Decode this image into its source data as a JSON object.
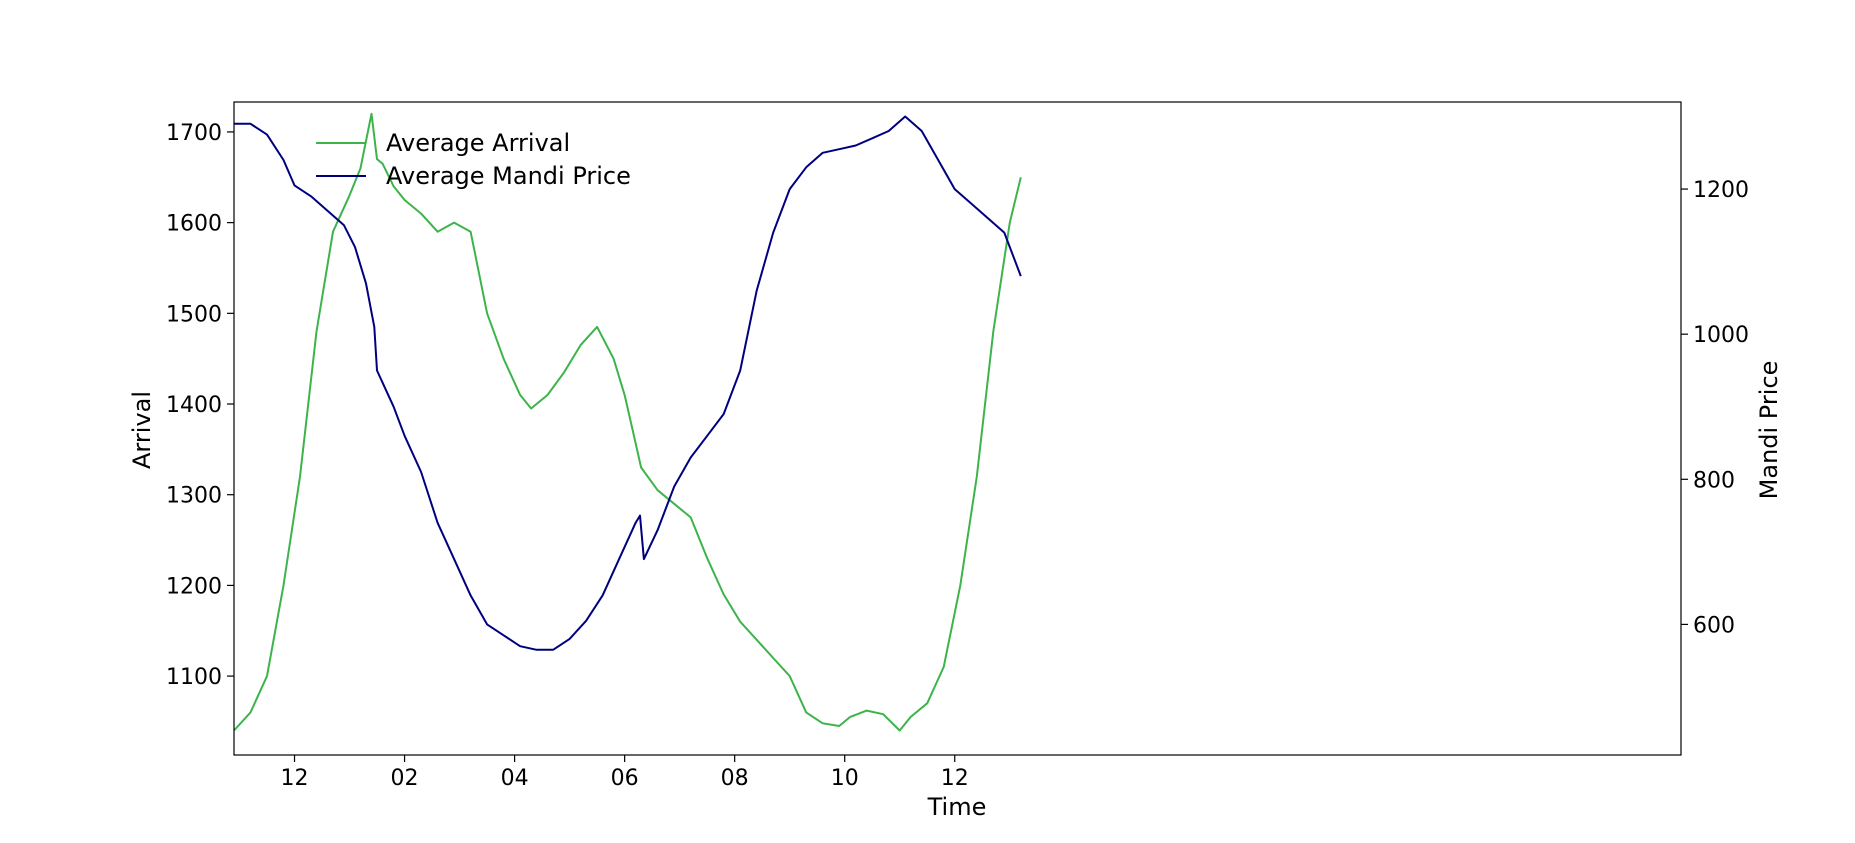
{
  "chart_data": {
    "type": "line",
    "xlabel": "Time",
    "ylabel_left": "Arrival",
    "ylabel_right": "Mandi Price",
    "x_unit": "hour",
    "xlim": [
      10.9,
      37.2
    ],
    "x_ticks": [
      {
        "x": 12,
        "label": "12"
      },
      {
        "x": 14,
        "label": "02"
      },
      {
        "x": 16,
        "label": "04"
      },
      {
        "x": 18,
        "label": "06"
      },
      {
        "x": 20,
        "label": "08"
      },
      {
        "x": 22,
        "label": "10"
      },
      {
        "x": 24,
        "label": "12"
      }
    ],
    "y_left_ticks": [
      1100,
      1200,
      1300,
      1400,
      1500,
      1600,
      1700
    ],
    "y_left_lim": [
      1013,
      1733
    ],
    "y_right_ticks": [
      600,
      800,
      1000,
      1200
    ],
    "y_right_lim": [
      420,
      1320
    ],
    "legend_position": "upper-left",
    "grid": false,
    "series": [
      {
        "name": "Average Arrival",
        "axis": "left",
        "color": "#3cb44b",
        "x": [
          10.9,
          11.2,
          11.5,
          11.8,
          12.1,
          12.4,
          12.7,
          13.0,
          13.2,
          13.4,
          13.5,
          13.6,
          13.8,
          14.0,
          14.3,
          14.6,
          14.9,
          15.2,
          15.5,
          15.8,
          16.1,
          16.3,
          16.6,
          16.9,
          17.2,
          17.5,
          17.8,
          18.0,
          18.15,
          18.3,
          18.6,
          18.9,
          19.2,
          19.5,
          19.8,
          20.1,
          20.4,
          20.7,
          21.0,
          21.3,
          21.6,
          21.9,
          22.1,
          22.4,
          22.7,
          23.0,
          23.2,
          23.5,
          23.8,
          24.1,
          24.4,
          24.7,
          25.0,
          25.2
        ],
        "y": [
          1040,
          1060,
          1100,
          1200,
          1320,
          1480,
          1590,
          1630,
          1660,
          1720,
          1670,
          1665,
          1640,
          1625,
          1610,
          1590,
          1600,
          1590,
          1500,
          1450,
          1410,
          1395,
          1410,
          1435,
          1465,
          1485,
          1450,
          1410,
          1370,
          1330,
          1305,
          1290,
          1275,
          1230,
          1190,
          1160,
          1140,
          1120,
          1100,
          1060,
          1048,
          1045,
          1055,
          1062,
          1058,
          1040,
          1055,
          1070,
          1110,
          1200,
          1320,
          1480,
          1600,
          1650
        ]
      },
      {
        "name": "Average Mandi Price",
        "axis": "right",
        "color": "#00007f",
        "x": [
          10.9,
          11.2,
          11.5,
          11.8,
          12.0,
          12.3,
          12.6,
          12.9,
          13.1,
          13.3,
          13.45,
          13.5,
          13.8,
          14.0,
          14.3,
          14.6,
          14.9,
          15.2,
          15.5,
          15.8,
          16.1,
          16.4,
          16.7,
          17.0,
          17.3,
          17.6,
          17.9,
          18.2,
          18.28,
          18.35,
          18.6,
          18.9,
          19.2,
          19.5,
          19.8,
          20.1,
          20.4,
          20.7,
          21.0,
          21.3,
          21.6,
          21.9,
          22.2,
          22.5,
          22.8,
          23.1,
          23.4,
          23.7,
          24.0,
          24.3,
          24.6,
          24.9,
          25.2
        ],
        "y": [
          1290,
          1290,
          1275,
          1240,
          1205,
          1190,
          1170,
          1150,
          1120,
          1070,
          1010,
          950,
          900,
          860,
          810,
          740,
          690,
          640,
          600,
          585,
          570,
          565,
          565,
          580,
          605,
          640,
          690,
          740,
          750,
          690,
          730,
          790,
          830,
          860,
          890,
          950,
          1060,
          1140,
          1200,
          1230,
          1250,
          1255,
          1260,
          1270,
          1280,
          1300,
          1280,
          1240,
          1200,
          1180,
          1160,
          1140,
          1080
        ]
      }
    ]
  }
}
